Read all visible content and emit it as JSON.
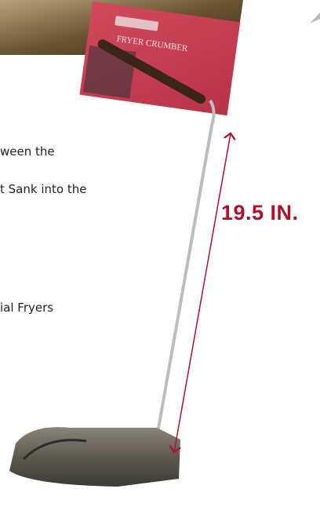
{
  "text_lines": [
    "ween the",
    "t Sank into the",
    "ial Fryers"
  ],
  "dimension_label": "19.5 IN.",
  "card": {
    "title": "FRYER CRUMBER"
  }
}
